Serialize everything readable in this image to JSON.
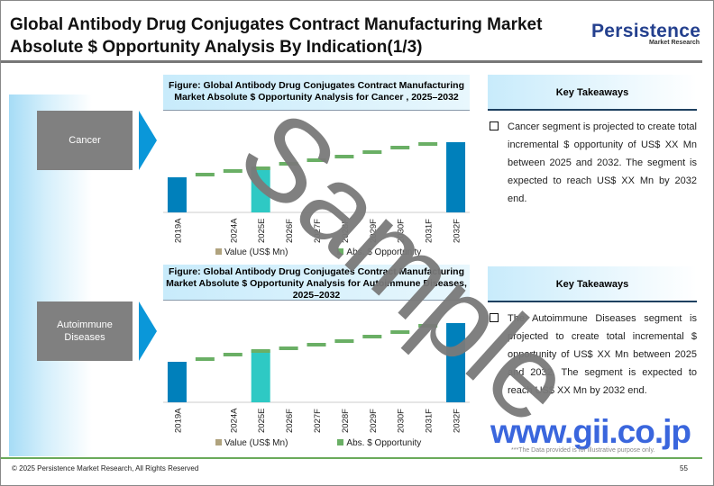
{
  "header": {
    "title": "Global Antibody Drug Conjugates Contract Manufacturing Market Absolute $ Opportunity Analysis By Indication(1/3)",
    "logo_main": "Persistence",
    "logo_sub": "Market Research"
  },
  "segments": [
    {
      "label": "Cancer"
    },
    {
      "label": "Autoimmune Diseases"
    }
  ],
  "colors": {
    "actual_bar": "#0080bb",
    "estimate_bar": "#2ec9c4",
    "opportunity": "#6aaf65",
    "value_legend": "#b0a37e",
    "accent": "#0a97d9"
  },
  "chart_data": [
    {
      "type": "bar",
      "title": "Figure: Global Antibody Drug Conjugates Contract Manufacturing Market Absolute $ Opportunity Analysis for Cancer , 2025–2032",
      "categories": [
        "2019A",
        "",
        "2024A",
        "2025E",
        "2026F",
        "2027F",
        "2028F",
        "2029F",
        "2030F",
        "2031F",
        "2032F"
      ],
      "series": [
        {
          "name": "Value (US$ Mn)",
          "values": [
            39,
            null,
            null,
            50,
            null,
            null,
            null,
            null,
            null,
            null,
            78
          ]
        },
        {
          "name": "Abs. $ Opportunity",
          "values": [
            null,
            42,
            46,
            49,
            54,
            58,
            62,
            67,
            72,
            76,
            null
          ]
        }
      ],
      "legend": "bottom",
      "grid": false
    },
    {
      "type": "bar",
      "title": "Figure: Global Antibody Drug Conjugates Contract Manufacturing Market Absolute $ Opportunity Analysis for Autoimmune Diseases, 2025–2032",
      "categories": [
        "2019A",
        "",
        "2024A",
        "2025E",
        "2026F",
        "2027F",
        "2028F",
        "2029F",
        "2030F",
        "2031F",
        "2032F"
      ],
      "series": [
        {
          "name": "Value (US$ Mn)",
          "values": [
            45,
            null,
            null,
            58,
            null,
            null,
            null,
            null,
            null,
            null,
            88
          ]
        },
        {
          "name": "Abs. $ Opportunity",
          "values": [
            null,
            48,
            53,
            57,
            60,
            64,
            68,
            73,
            78,
            85,
            null
          ]
        }
      ],
      "legend": "bottom",
      "grid": false
    }
  ],
  "takeaways": [
    {
      "heading": "Key Takeaways",
      "text": "Cancer segment is projected to create total incremental $ opportunity of US$ XX Mn between 2025 and 2032. The segment is expected to reach US$ XX Mn by 2032 end."
    },
    {
      "heading": "Key Takeaways",
      "text": "The Autoimmune Diseases segment is projected to create total incremental $ opportunity of US$ XX Mn between 2025 and 2032. The segment is expected to reach US$ XX Mn by 2032 end."
    }
  ],
  "watermark": "Sample",
  "site": "www.gii.co.jp",
  "note": "***The Data provided is for illustrative purpose only.",
  "footer": {
    "copyright": "© 2025 Persistence Market Research, All Rights Reserved",
    "page": "55"
  }
}
